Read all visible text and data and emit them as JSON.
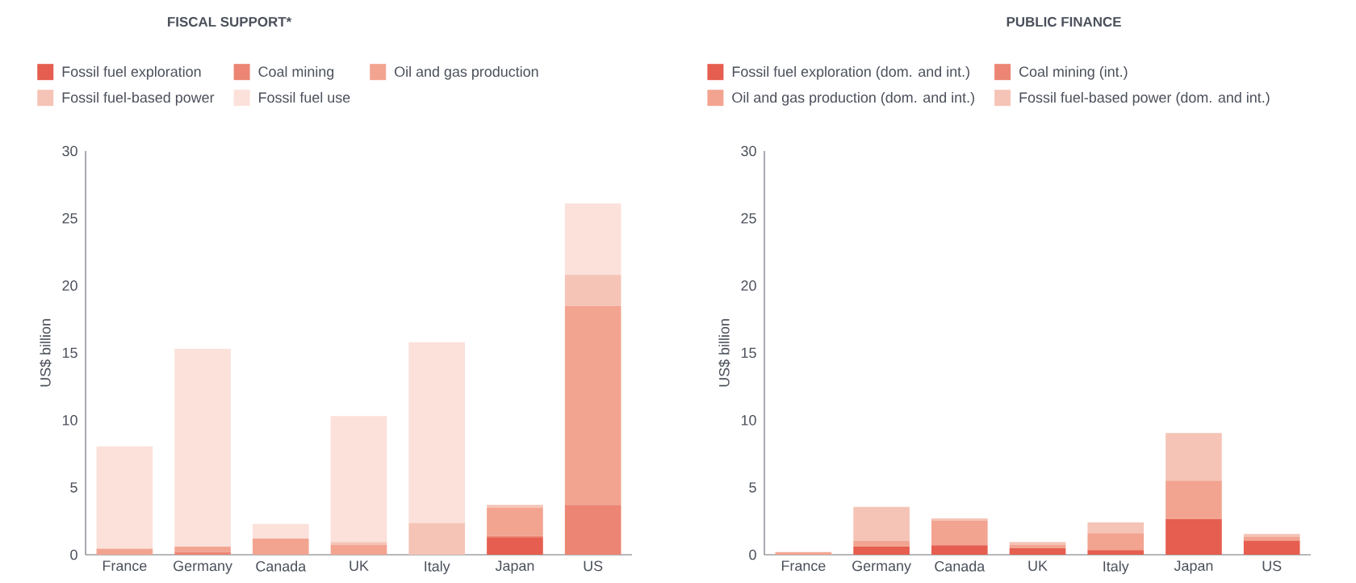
{
  "chart_data": [
    {
      "type": "bar",
      "title": "FISCAL SUPPORT*",
      "ylabel": "US$ billion",
      "stacked": true,
      "legend": "top",
      "grid": false,
      "categories": [
        "France",
        "Germany",
        "Canada",
        "UK",
        "Italy",
        "Japan",
        "US"
      ],
      "ylim": [
        0,
        30
      ],
      "yticks": [
        0,
        5,
        10,
        15,
        20,
        25,
        30
      ],
      "series": [
        {
          "name": "Fossil fuel exploration",
          "color": "#e55e4f",
          "values": [
            0,
            0,
            0,
            0,
            0,
            1.3,
            0
          ]
        },
        {
          "name": "Coal mining",
          "color": "#ec8573",
          "values": [
            0,
            0.2,
            0,
            0,
            0,
            0.1,
            3.7
          ]
        },
        {
          "name": "Oil and gas production",
          "color": "#f2a491",
          "values": [
            0.45,
            0.4,
            1.2,
            0.75,
            0,
            2.1,
            14.8
          ]
        },
        {
          "name": "Fossil fuel-based power",
          "color": "#f5c4b6",
          "values": [
            0,
            0,
            0,
            0.2,
            2.35,
            0.2,
            2.3
          ]
        },
        {
          "name": "Fossil fuel use",
          "color": "#fbe1da",
          "values": [
            7.6,
            14.7,
            1.1,
            9.35,
            13.45,
            0,
            5.3
          ]
        }
      ]
    },
    {
      "type": "bar",
      "title": "PUBLIC FINANCE",
      "ylabel": "US$ billion",
      "stacked": true,
      "legend": "top",
      "grid": false,
      "categories": [
        "France",
        "Germany",
        "Canada",
        "UK",
        "Italy",
        "Japan",
        "US"
      ],
      "ylim": [
        0,
        30
      ],
      "yticks": [
        0,
        5,
        10,
        15,
        20,
        25,
        30
      ],
      "series": [
        {
          "name": "Fossil fuel exploration (dom. and int.)",
          "color": "#e55e4f",
          "values": [
            0,
            0.6,
            0.7,
            0.5,
            0.35,
            2.65,
            1.05
          ]
        },
        {
          "name": "Coal mining (int.)",
          "color": "#ec8573",
          "values": [
            0,
            0,
            0,
            0,
            0,
            0,
            0
          ]
        },
        {
          "name": "Oil and gas production (dom. and int.)",
          "color": "#f2a491",
          "values": [
            0.2,
            0.45,
            1.85,
            0.25,
            1.25,
            2.85,
            0.3
          ]
        },
        {
          "name": "Fossil fuel-based power (dom. and int.)",
          "color": "#f5c4b6",
          "values": [
            0,
            2.5,
            0.15,
            0.2,
            0.8,
            3.55,
            0.2
          ]
        }
      ]
    }
  ]
}
